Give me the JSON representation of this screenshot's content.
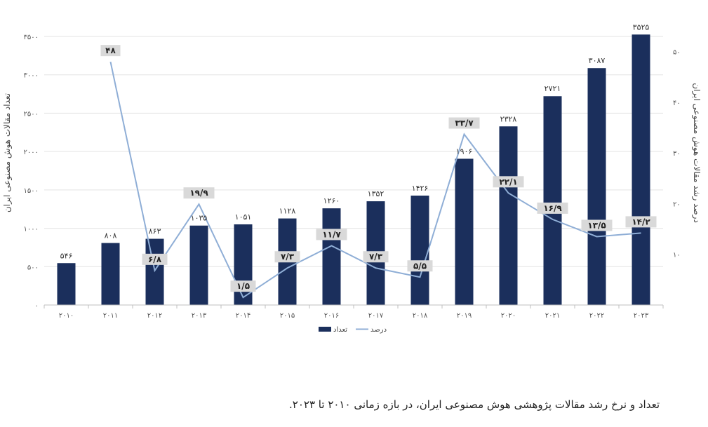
{
  "caption": "تعداد و نرخ رشد مقالات پژوهشی هوش مصنوعی ایران، در بازه زمانی ۲۰۱۰ تا ۲۰۲۳.",
  "chart_data": {
    "type": "bar",
    "categories": [
      "۲۰۱۰",
      "۲۰۱۱",
      "۲۰۱۲",
      "۲۰۱۳",
      "۲۰۱۴",
      "۲۰۱۵",
      "۲۰۱۶",
      "۲۰۱۷",
      "۲۰۱۸",
      "۲۰۱۹",
      "۲۰۲۰",
      "۲۰۲۱",
      "۲۰۲۲",
      "۲۰۲۳"
    ],
    "series": [
      {
        "name": "تعداد",
        "type": "bar",
        "axis": "left",
        "color": "#1b2f5c",
        "values": [
          546,
          808,
          863,
          1035,
          1051,
          1128,
          1260,
          1352,
          1426,
          1906,
          2328,
          2721,
          3087,
          3525
        ],
        "labels": [
          "۵۴۶",
          "۸۰۸",
          "۸۶۳",
          "۱۰۳۵",
          "۱۰۵۱",
          "۱۱۲۸",
          "۱۲۶۰",
          "۱۳۵۲",
          "۱۴۲۶",
          "۱۹۰۶",
          "۲۳۲۸",
          "۲۷۲۱",
          "۳۰۸۷",
          "۳۵۲۵"
        ]
      },
      {
        "name": "درصد",
        "type": "line",
        "axis": "right",
        "color": "#8faed6",
        "values": [
          null,
          48,
          6.8,
          19.9,
          1.5,
          7.3,
          11.7,
          7.3,
          5.5,
          33.7,
          22.1,
          16.9,
          13.5,
          14.2
        ],
        "labels": [
          "",
          "۴۸",
          "۶/۸",
          "۱۹/۹",
          "۱/۵",
          "۷/۳",
          "۱۱/۷",
          "۷/۳",
          "۵/۵",
          "۳۳/۷",
          "۲۲/۱",
          "۱۶/۹",
          "۱۳/۵",
          "۱۴/۲"
        ]
      }
    ],
    "left_axis": {
      "title": "تعداد مقالات هوش مصنوعی ایران",
      "ylim": [
        0,
        3500
      ],
      "ticks": [
        0,
        500,
        1000,
        1500,
        2000,
        2500,
        3000,
        3500
      ],
      "tick_labels": [
        "۰",
        "۵۰۰",
        "۱۰۰۰",
        "۱۵۰۰",
        "۲۰۰۰",
        "۲۵۰۰",
        "۳۰۰۰",
        "۳۵۰۰"
      ]
    },
    "right_axis": {
      "title": "درصد رشد مقالات هوش مصنوعی ایران",
      "ylim": [
        0,
        53
      ],
      "ticks": [
        10,
        20,
        30,
        40,
        50
      ],
      "tick_labels": [
        "۱۰",
        "۲۰",
        "۳۰",
        "۴۰",
        "۵۰"
      ]
    },
    "grid": true,
    "legend_position": "bottom-center"
  }
}
